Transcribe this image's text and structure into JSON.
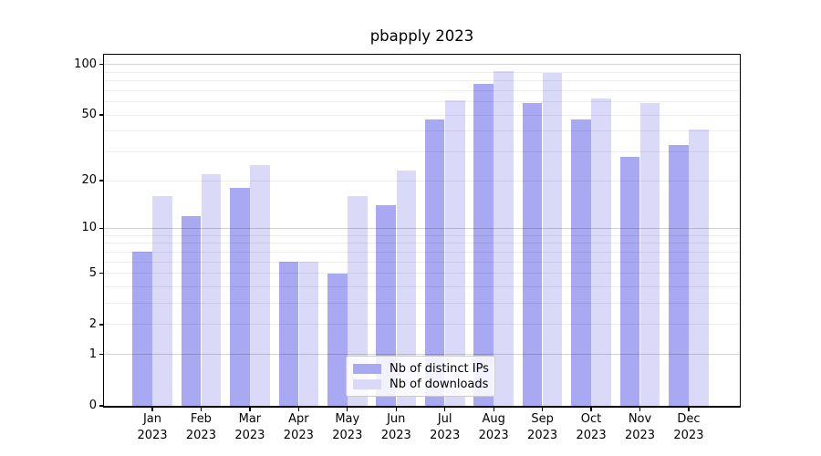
{
  "chart_data": {
    "type": "bar",
    "title": "pbapply 2023",
    "categories": [
      "Jan",
      "Feb",
      "Mar",
      "Apr",
      "May",
      "Jun",
      "Jul",
      "Aug",
      "Sep",
      "Oct",
      "Nov",
      "Dec"
    ],
    "year_label": "2023",
    "series": [
      {
        "name": "Nb of distinct IPs",
        "color": "#a9a9f3",
        "values": [
          7,
          12,
          18,
          6,
          5,
          14,
          47,
          77,
          59,
          47,
          28,
          33
        ]
      },
      {
        "name": "Nb of downloads",
        "color": "#dadaf8",
        "values": [
          16,
          22,
          25,
          6,
          16,
          23,
          61,
          91,
          89,
          63,
          59,
          41
        ]
      }
    ],
    "y_ticks": [
      0,
      1,
      2,
      5,
      10,
      20,
      50,
      100
    ],
    "y_minor_gridlines": [
      3,
      4,
      6,
      7,
      8,
      9,
      30,
      40,
      60,
      70,
      80,
      90
    ],
    "y_major_gridlines": [
      1,
      10,
      100
    ],
    "ylim": [
      0,
      115
    ],
    "scale": "log1p",
    "grid": true,
    "legend_position": "bottom-center"
  },
  "colors": {
    "background": "#ffffff",
    "axis": "#000000",
    "grid_major": "rgba(0,0,0,0.17)",
    "grid_minor": "rgba(0,0,0,0.07)",
    "legend_border": "#cccccc",
    "legend_bg": "rgba(255,255,255,0.85)",
    "text": "#000000"
  }
}
